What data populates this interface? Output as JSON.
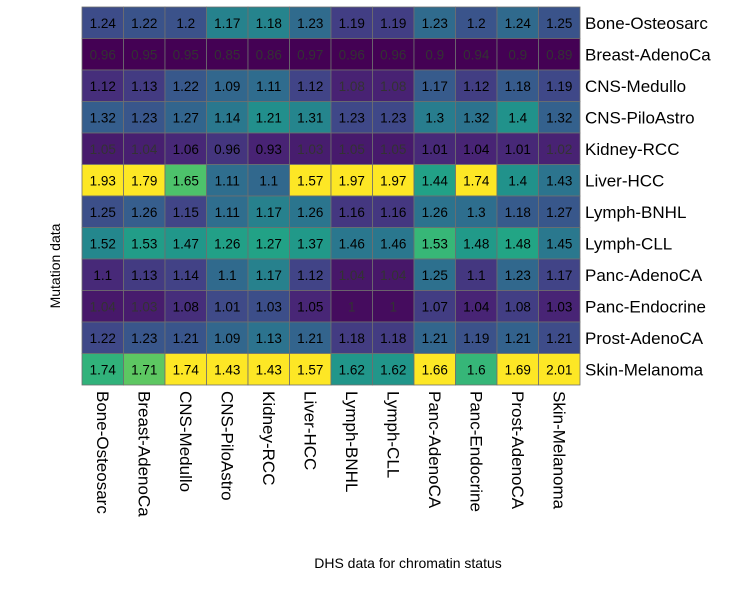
{
  "chart_data": {
    "type": "heatmap",
    "xlabel": "DHS data for chromatin status",
    "ylabel": "Mutation data",
    "rows": [
      "Bone-Osteosarc",
      "Breast-AdenoCa",
      "CNS-Medullo",
      "CNS-PiloAstro",
      "Kidney-RCC",
      "Liver-HCC",
      "Lymph-BNHL",
      "Lymph-CLL",
      "Panc-AdenoCA",
      "Panc-Endocrine",
      "Prost-AdenoCA",
      "Skin-Melanoma"
    ],
    "columns": [
      "Bone-Osteosarc",
      "Breast-AdenoCa",
      "CNS-Medullo",
      "CNS-PiloAstro",
      "Kidney-RCC",
      "Liver-HCC",
      "Lymph-BNHL",
      "Lymph-CLL",
      "Panc-AdenoCA",
      "Panc-Endocrine",
      "Prost-AdenoCA",
      "Skin-Melanoma"
    ],
    "values": [
      [
        1.24,
        1.22,
        1.2,
        1.17,
        1.18,
        1.23,
        1.19,
        1.19,
        1.23,
        1.2,
        1.24,
        1.25
      ],
      [
        0.96,
        0.95,
        0.95,
        0.85,
        0.86,
        0.97,
        0.96,
        0.96,
        0.9,
        0.94,
        0.9,
        0.89
      ],
      [
        1.12,
        1.13,
        1.22,
        1.09,
        1.11,
        1.12,
        1.08,
        1.08,
        1.17,
        1.12,
        1.18,
        1.19
      ],
      [
        1.32,
        1.23,
        1.27,
        1.14,
        1.21,
        1.31,
        1.23,
        1.23,
        1.3,
        1.32,
        1.4,
        1.32
      ],
      [
        1.05,
        1.04,
        1.06,
        0.96,
        0.93,
        1.03,
        1.05,
        1.05,
        1.01,
        1.04,
        1.01,
        1.02
      ],
      [
        1.93,
        1.79,
        1.65,
        1.11,
        1.1,
        1.57,
        1.97,
        1.97,
        1.44,
        1.74,
        1.4,
        1.43
      ],
      [
        1.25,
        1.26,
        1.15,
        1.11,
        1.17,
        1.26,
        1.16,
        1.16,
        1.26,
        1.3,
        1.18,
        1.27
      ],
      [
        1.52,
        1.53,
        1.47,
        1.26,
        1.27,
        1.37,
        1.46,
        1.46,
        1.53,
        1.48,
        1.48,
        1.45
      ],
      [
        1.1,
        1.13,
        1.14,
        1.1,
        1.17,
        1.12,
        1.04,
        1.04,
        1.25,
        1.1,
        1.23,
        1.17
      ],
      [
        1.04,
        1.03,
        1.08,
        1.01,
        1.03,
        1.05,
        1,
        1,
        1.07,
        1.04,
        1.08,
        1.03
      ],
      [
        1.22,
        1.23,
        1.21,
        1.09,
        1.13,
        1.21,
        1.18,
        1.18,
        1.21,
        1.19,
        1.21,
        1.21
      ],
      [
        1.74,
        1.71,
        1.74,
        1.43,
        1.43,
        1.57,
        1.62,
        1.62,
        1.66,
        1.6,
        1.69,
        2.01
      ]
    ],
    "colormap": "viridis",
    "grid": true,
    "legend": "none"
  }
}
